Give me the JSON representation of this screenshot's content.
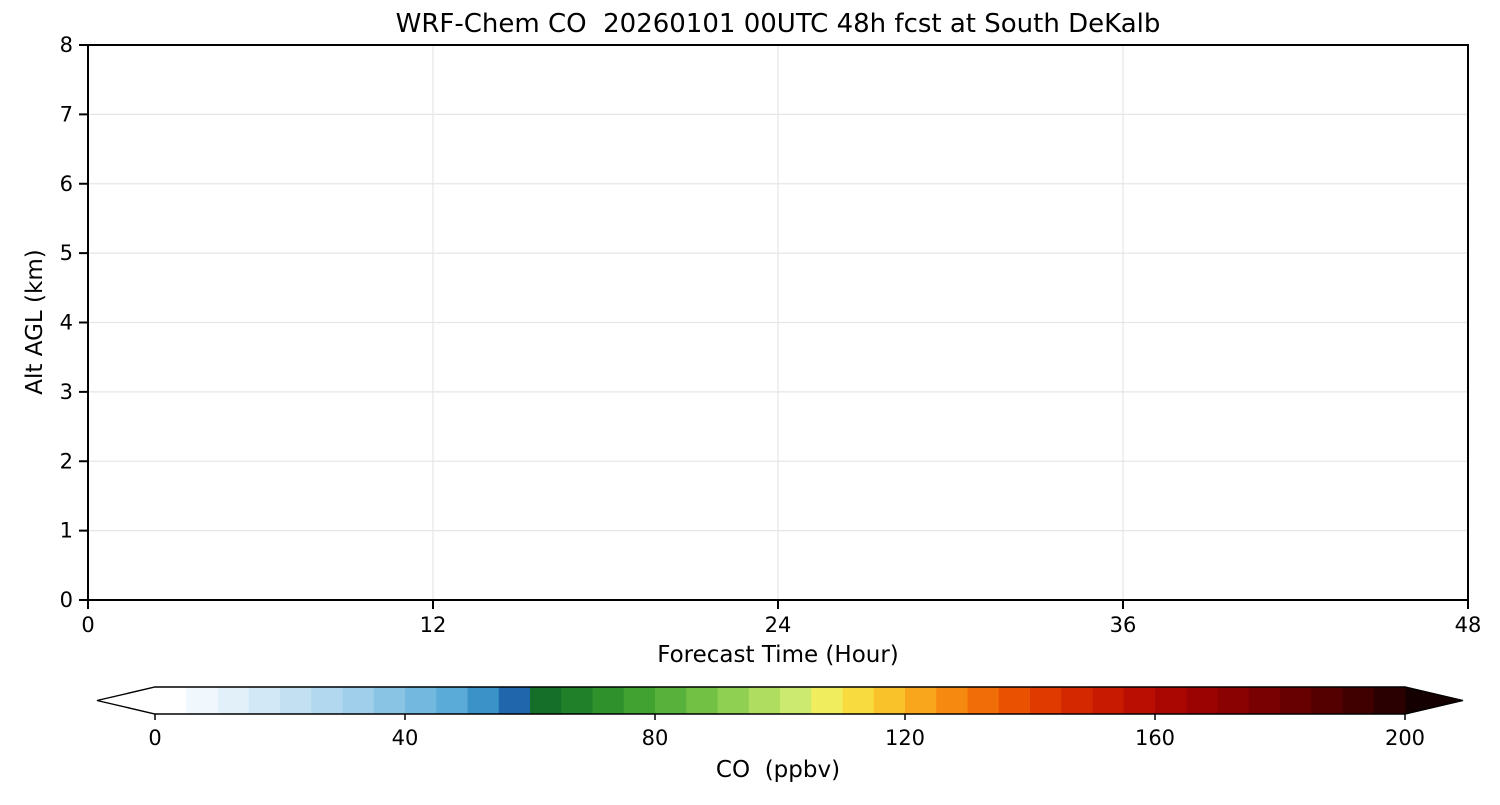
{
  "chart_data": {
    "type": "heatmap",
    "title": "WRF-Chem CO  20260101 00UTC 48h fcst at South DeKalb",
    "xlabel": "Forecast Time (Hour)",
    "ylabel": "Alt AGL (km)",
    "xlim": [
      0,
      48
    ],
    "ylim": [
      0,
      8
    ],
    "x_ticks": [
      0,
      12,
      24,
      36,
      48
    ],
    "y_ticks": [
      0,
      1,
      2,
      3,
      4,
      5,
      6,
      7,
      8
    ],
    "grid": true,
    "legend": "none",
    "values": [],
    "colorbar": {
      "label": "CO  (ppbv)",
      "orientation": "horizontal",
      "min": 0,
      "max": 200,
      "ticks": [
        0,
        40,
        80,
        120,
        160,
        200
      ],
      "extend": "both",
      "under_color": "#ffffff",
      "over_color": "#140000",
      "colors": [
        "#ffffff",
        "#f1f8fd",
        "#e2f0fa",
        "#d3e8f6",
        "#c3e0f3",
        "#b2d8ef",
        "#9fcfea",
        "#8ac4e5",
        "#73b8df",
        "#5aabd8",
        "#3a92c9",
        "#1f66ad",
        "#156f28",
        "#1f8029",
        "#2e912c",
        "#41a232",
        "#58b13a",
        "#72c044",
        "#8fcf51",
        "#aedd60",
        "#cdea70",
        "#f0ee5e",
        "#f8dc3f",
        "#fac22a",
        "#f9a61c",
        "#f68a10",
        "#f16d07",
        "#ea5202",
        "#e03a01",
        "#d42801",
        "#c71a01",
        "#b90e01",
        "#aa0602",
        "#9a0302",
        "#8a0202",
        "#790101",
        "#670101",
        "#550000",
        "#400000",
        "#2a0000"
      ]
    }
  },
  "colors": {
    "background": "#ffffff",
    "axis": "#000000",
    "grid": "#e6e6e6",
    "text": "#000000"
  }
}
